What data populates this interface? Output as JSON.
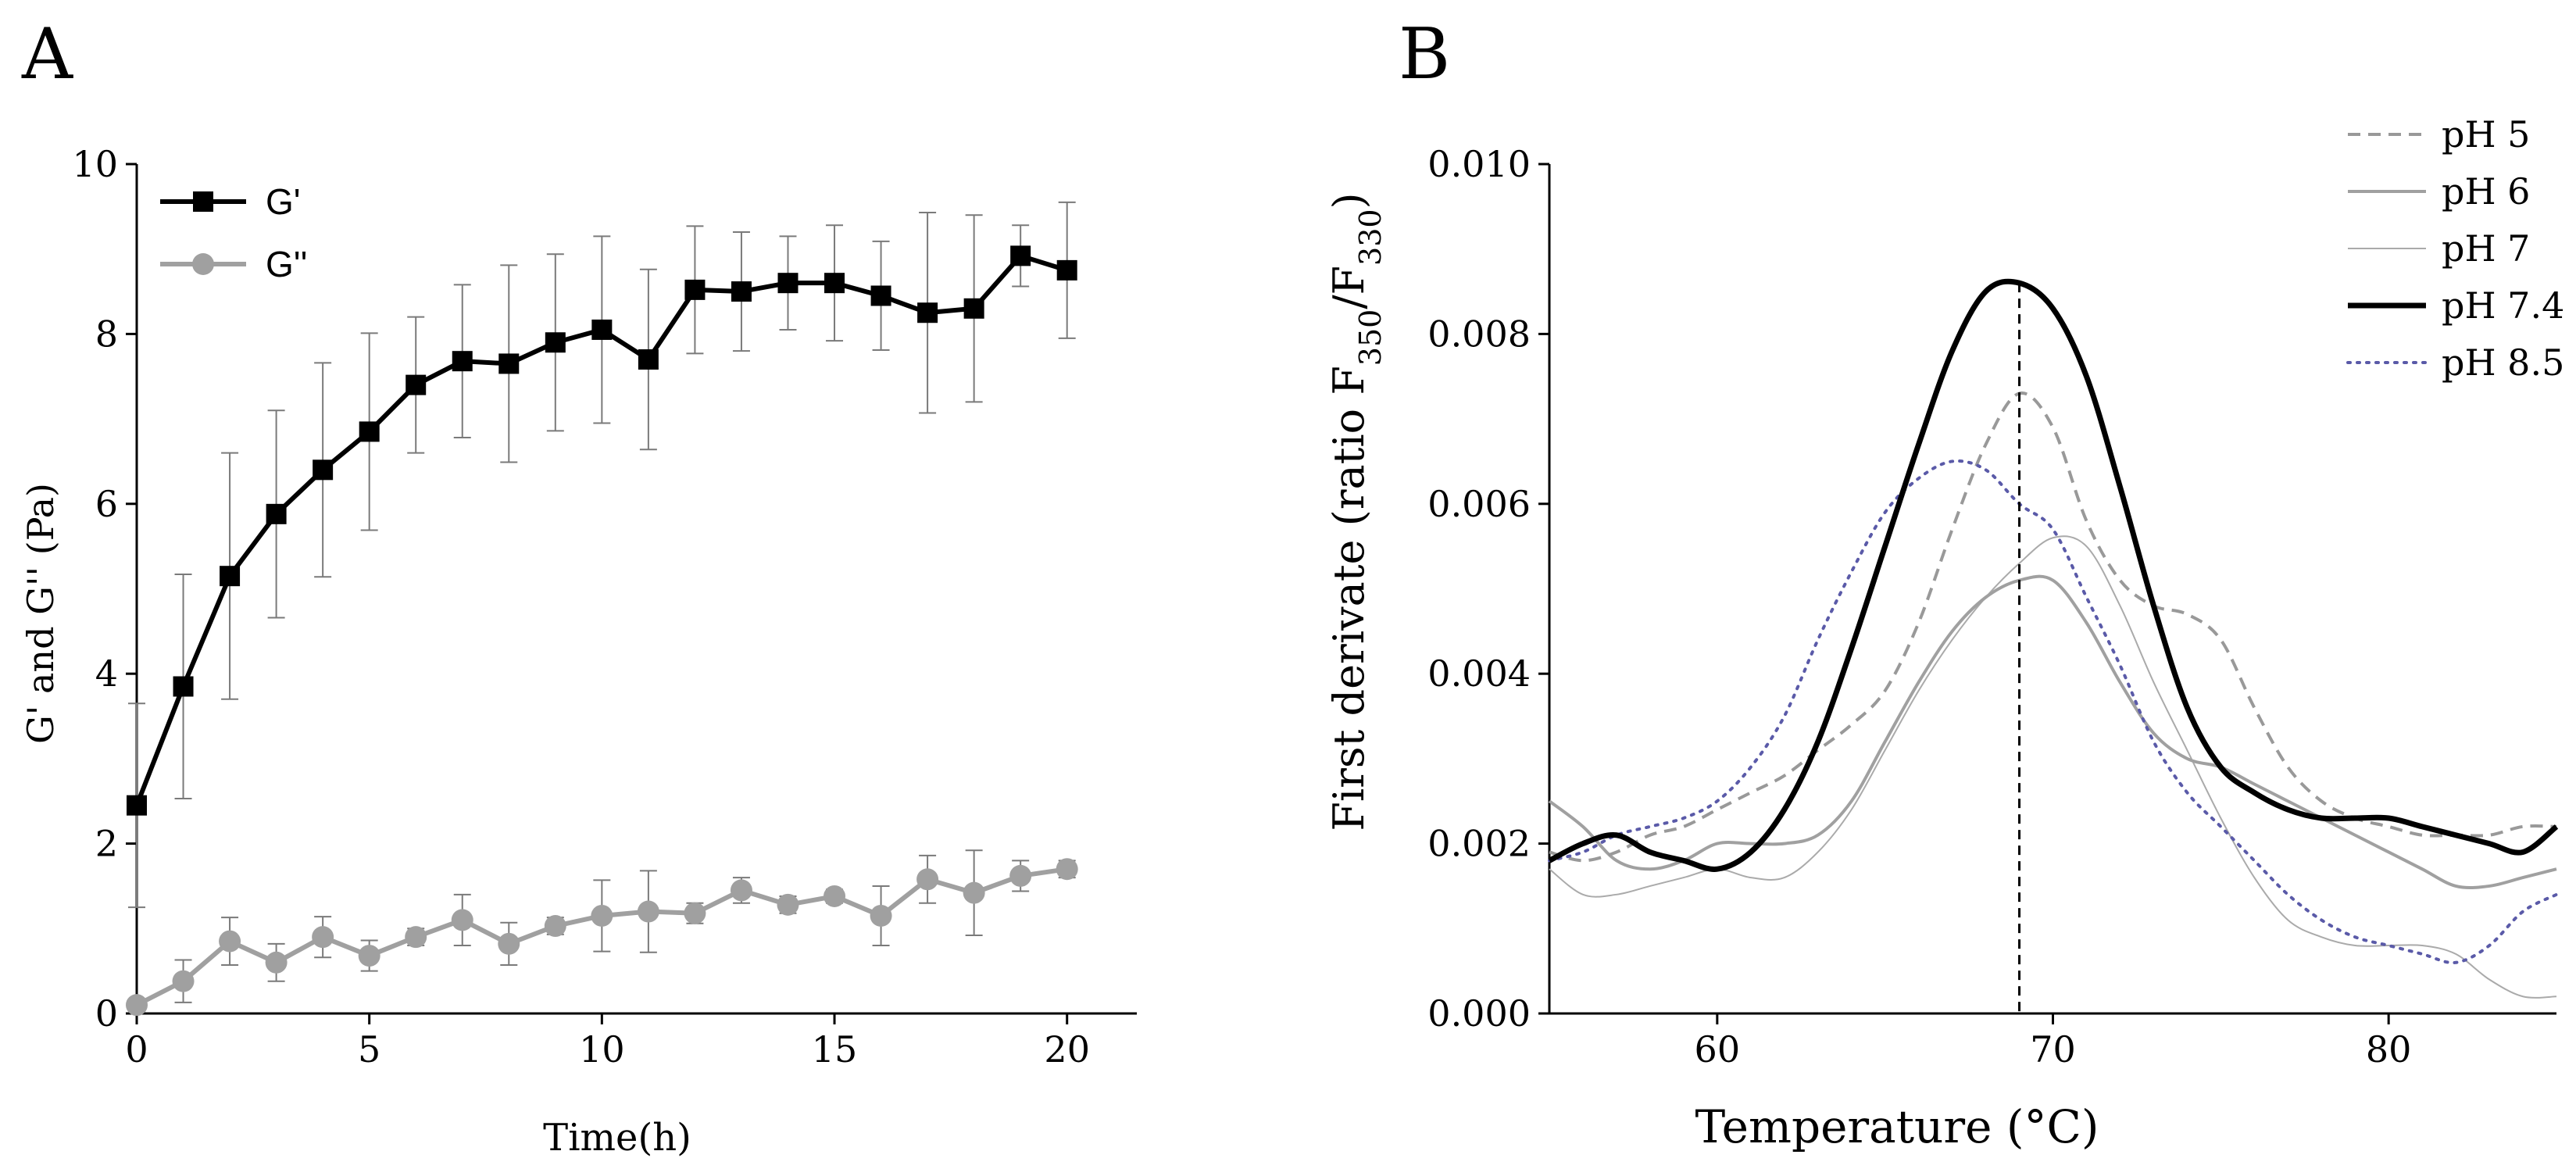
{
  "chart_data": [
    {
      "panel_label": "A",
      "type": "line",
      "xlabel": "Time(h)",
      "ylabel": "G' and G'' (Pa)",
      "xlim": [
        0,
        21.5
      ],
      "ylim": [
        0,
        10
      ],
      "xticks": [
        0,
        5,
        10,
        15,
        20
      ],
      "yticks": [
        0,
        2,
        4,
        6,
        8,
        10
      ],
      "legend_position": "top-left",
      "series": [
        {
          "name": "G'",
          "color": "#000000",
          "marker": "square",
          "x": [
            0,
            1,
            2,
            3,
            4,
            5,
            6,
            7,
            8,
            9,
            10,
            11,
            12,
            13,
            14,
            15,
            16,
            17,
            18,
            19,
            20
          ],
          "values": [
            2.45,
            3.85,
            5.15,
            5.88,
            6.4,
            6.85,
            7.4,
            7.68,
            7.65,
            7.9,
            8.05,
            7.7,
            8.52,
            8.5,
            8.6,
            8.6,
            8.45,
            8.25,
            8.3,
            8.92,
            8.75
          ],
          "errors": [
            1.2,
            1.32,
            1.45,
            1.22,
            1.26,
            1.16,
            0.8,
            0.9,
            1.16,
            1.04,
            1.1,
            1.06,
            0.75,
            0.7,
            0.55,
            0.68,
            0.64,
            1.18,
            1.1,
            0.36,
            0.8
          ]
        },
        {
          "name": "G''",
          "color": "#a0a0a0",
          "marker": "circle",
          "x": [
            0,
            1,
            2,
            3,
            4,
            5,
            6,
            7,
            8,
            9,
            10,
            11,
            12,
            13,
            14,
            15,
            16,
            17,
            18,
            19,
            20
          ],
          "values": [
            0.1,
            0.38,
            0.85,
            0.6,
            0.9,
            0.68,
            0.9,
            1.1,
            0.82,
            1.03,
            1.15,
            1.2,
            1.18,
            1.45,
            1.28,
            1.38,
            1.15,
            1.58,
            1.42,
            1.62,
            1.7
          ],
          "errors": [
            0.05,
            0.25,
            0.28,
            0.22,
            0.24,
            0.18,
            0.1,
            0.3,
            0.25,
            0.1,
            0.42,
            0.48,
            0.12,
            0.15,
            0.1,
            0.08,
            0.35,
            0.28,
            0.5,
            0.18,
            0.1
          ]
        }
      ]
    },
    {
      "panel_label": "B",
      "type": "line",
      "xlabel": "Temperature (°C)",
      "ylabel_parts": [
        "First derivate (ratio F",
        "350",
        "/F",
        "330",
        ")"
      ],
      "xlim": [
        55,
        85
      ],
      "ylim": [
        0,
        0.01
      ],
      "xticks": [
        60,
        70,
        80
      ],
      "xtick_labels": [
        "60",
        "70",
        "80"
      ],
      "yticks": [
        0,
        0.002,
        0.004,
        0.006,
        0.008,
        0.01
      ],
      "ytick_labels": [
        "0.000",
        "0.002",
        "0.004",
        "0.006",
        "0.008",
        "0.010"
      ],
      "vline_x": 69,
      "legend_position": "top-right",
      "series": [
        {
          "name": "pH 5",
          "color": "#999999",
          "style": "dashed",
          "width": 4,
          "x": [
            55,
            56,
            57,
            58,
            59,
            60,
            61,
            62,
            63,
            64,
            65,
            66,
            67,
            68,
            69,
            70,
            71,
            72,
            73,
            74,
            75,
            76,
            77,
            78,
            79,
            80,
            81,
            82,
            83,
            84,
            85
          ],
          "values": [
            0.0019,
            0.0018,
            0.0019,
            0.0021,
            0.0022,
            0.0024,
            0.0026,
            0.0028,
            0.0031,
            0.0034,
            0.0038,
            0.0046,
            0.0057,
            0.0067,
            0.0073,
            0.0069,
            0.0058,
            0.0051,
            0.0048,
            0.0047,
            0.0044,
            0.0036,
            0.0029,
            0.0025,
            0.0023,
            0.0022,
            0.0021,
            0.0021,
            0.0021,
            0.0022,
            0.0022
          ]
        },
        {
          "name": "pH 6",
          "color": "#a0a0a0",
          "style": "solid",
          "width": 4,
          "x": [
            55,
            56,
            57,
            58,
            59,
            60,
            61,
            62,
            63,
            64,
            65,
            66,
            67,
            68,
            69,
            70,
            71,
            72,
            73,
            74,
            75,
            76,
            77,
            78,
            79,
            80,
            81,
            82,
            83,
            84,
            85
          ],
          "values": [
            0.0025,
            0.0022,
            0.0018,
            0.0017,
            0.0018,
            0.002,
            0.002,
            0.002,
            0.0021,
            0.0025,
            0.0032,
            0.0039,
            0.0045,
            0.0049,
            0.0051,
            0.0051,
            0.0046,
            0.0039,
            0.0033,
            0.003,
            0.0029,
            0.0027,
            0.0025,
            0.0023,
            0.0021,
            0.0019,
            0.0017,
            0.0015,
            0.0015,
            0.0016,
            0.0017
          ]
        },
        {
          "name": "pH 7",
          "color": "#aaaaaa",
          "style": "solid",
          "width": 2,
          "x": [
            55,
            56,
            57,
            58,
            59,
            60,
            61,
            62,
            63,
            64,
            65,
            66,
            67,
            68,
            69,
            70,
            71,
            72,
            73,
            74,
            75,
            76,
            77,
            78,
            79,
            80,
            81,
            82,
            83,
            84,
            85
          ],
          "values": [
            0.0017,
            0.0014,
            0.0014,
            0.0015,
            0.0016,
            0.0017,
            0.0016,
            0.0016,
            0.0019,
            0.0024,
            0.0031,
            0.0038,
            0.0044,
            0.0049,
            0.0053,
            0.0056,
            0.0055,
            0.0048,
            0.0039,
            0.0031,
            0.0023,
            0.0016,
            0.0011,
            0.0009,
            0.0008,
            0.0008,
            0.0008,
            0.0007,
            0.0004,
            0.0002,
            0.0002
          ]
        },
        {
          "name": "pH 7.4",
          "color": "#000000",
          "style": "solid",
          "width": 7,
          "x": [
            55,
            56,
            57,
            58,
            59,
            60,
            61,
            62,
            63,
            64,
            65,
            66,
            67,
            68,
            69,
            70,
            71,
            72,
            73,
            74,
            75,
            76,
            77,
            78,
            79,
            80,
            81,
            82,
            83,
            84,
            85
          ],
          "values": [
            0.0018,
            0.002,
            0.0021,
            0.0019,
            0.0018,
            0.0017,
            0.0019,
            0.0024,
            0.0032,
            0.0043,
            0.0055,
            0.0067,
            0.0078,
            0.0085,
            0.0086,
            0.0083,
            0.0075,
            0.0062,
            0.0048,
            0.0036,
            0.0029,
            0.0026,
            0.0024,
            0.0023,
            0.0023,
            0.0023,
            0.0022,
            0.0021,
            0.002,
            0.0019,
            0.0022
          ]
        },
        {
          "name": "pH 8.5",
          "color": "#5a5aa8",
          "style": "dotted",
          "width": 4,
          "x": [
            55,
            56,
            57,
            58,
            59,
            60,
            61,
            62,
            63,
            64,
            65,
            66,
            67,
            68,
            69,
            70,
            71,
            72,
            73,
            74,
            75,
            76,
            77,
            78,
            79,
            80,
            81,
            82,
            83,
            84,
            85
          ],
          "values": [
            0.0018,
            0.0019,
            0.0021,
            0.0022,
            0.0023,
            0.0025,
            0.0029,
            0.0035,
            0.0044,
            0.0052,
            0.0059,
            0.0063,
            0.0065,
            0.0064,
            0.006,
            0.0057,
            0.0049,
            0.0041,
            0.0032,
            0.0026,
            0.0022,
            0.0018,
            0.0014,
            0.0011,
            0.0009,
            0.0008,
            0.0007,
            0.0006,
            0.0008,
            0.0012,
            0.0014
          ]
        }
      ]
    }
  ]
}
